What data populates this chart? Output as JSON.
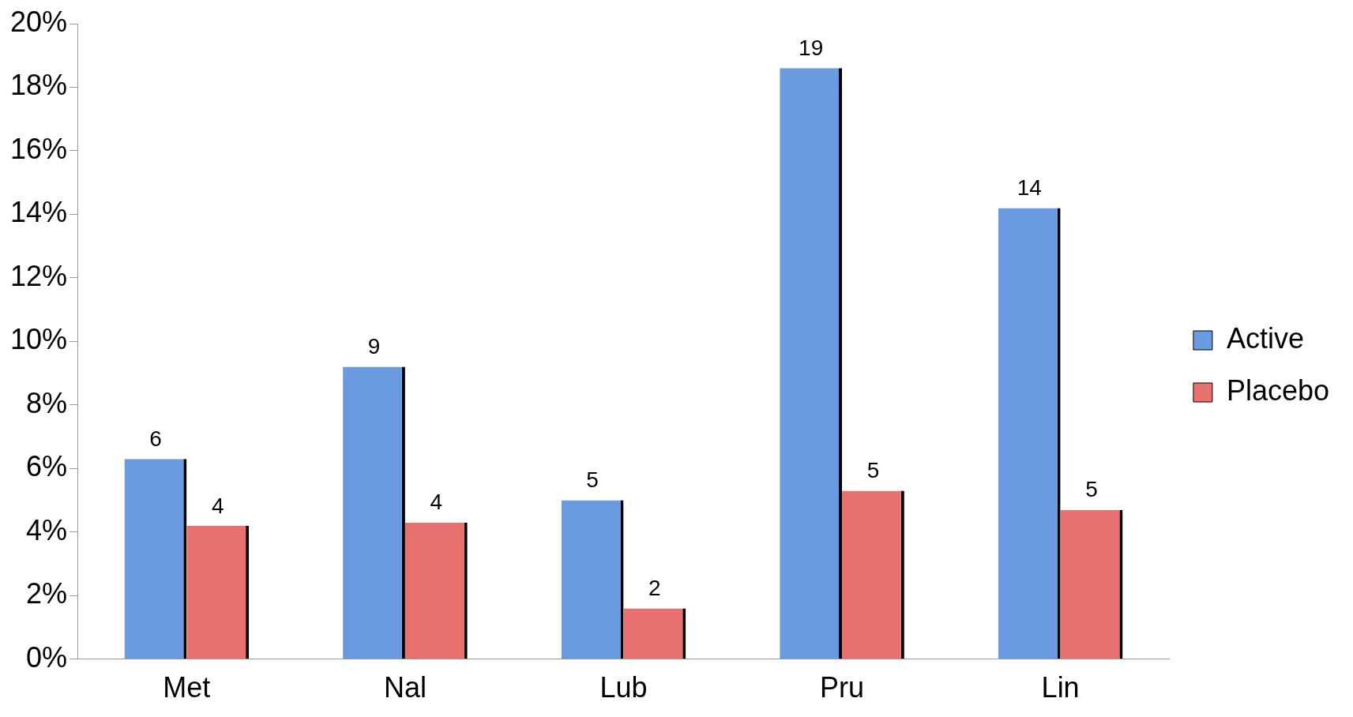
{
  "chart_data": {
    "type": "bar",
    "categories": [
      "Met",
      "Nal",
      "Lub",
      "Pru",
      "Lin"
    ],
    "series": [
      {
        "name": "Active",
        "color": "#6a9be0",
        "values": [
          6.3,
          9.2,
          5.0,
          18.6,
          14.2
        ],
        "value_labels": [
          "6",
          "9",
          "5",
          "19",
          "14"
        ]
      },
      {
        "name": "Placebo",
        "color": "#e8706e",
        "values": [
          4.2,
          4.3,
          1.6,
          5.3,
          4.7
        ],
        "value_labels": [
          "4",
          "4",
          "2",
          "5",
          "5"
        ]
      }
    ],
    "ylim": [
      0,
      20
    ],
    "yticks": [
      {
        "value": 0,
        "label": "0%"
      },
      {
        "value": 2,
        "label": "2%"
      },
      {
        "value": 4,
        "label": "4%"
      },
      {
        "value": 6,
        "label": "6%"
      },
      {
        "value": 8,
        "label": "8%"
      },
      {
        "value": 10,
        "label": "10%"
      },
      {
        "value": 12,
        "label": "12%"
      },
      {
        "value": 14,
        "label": "14%"
      },
      {
        "value": 16,
        "label": "16%"
      },
      {
        "value": 18,
        "label": "18%"
      },
      {
        "value": 20,
        "label": "20%"
      }
    ],
    "grid": false,
    "legend": "right"
  }
}
